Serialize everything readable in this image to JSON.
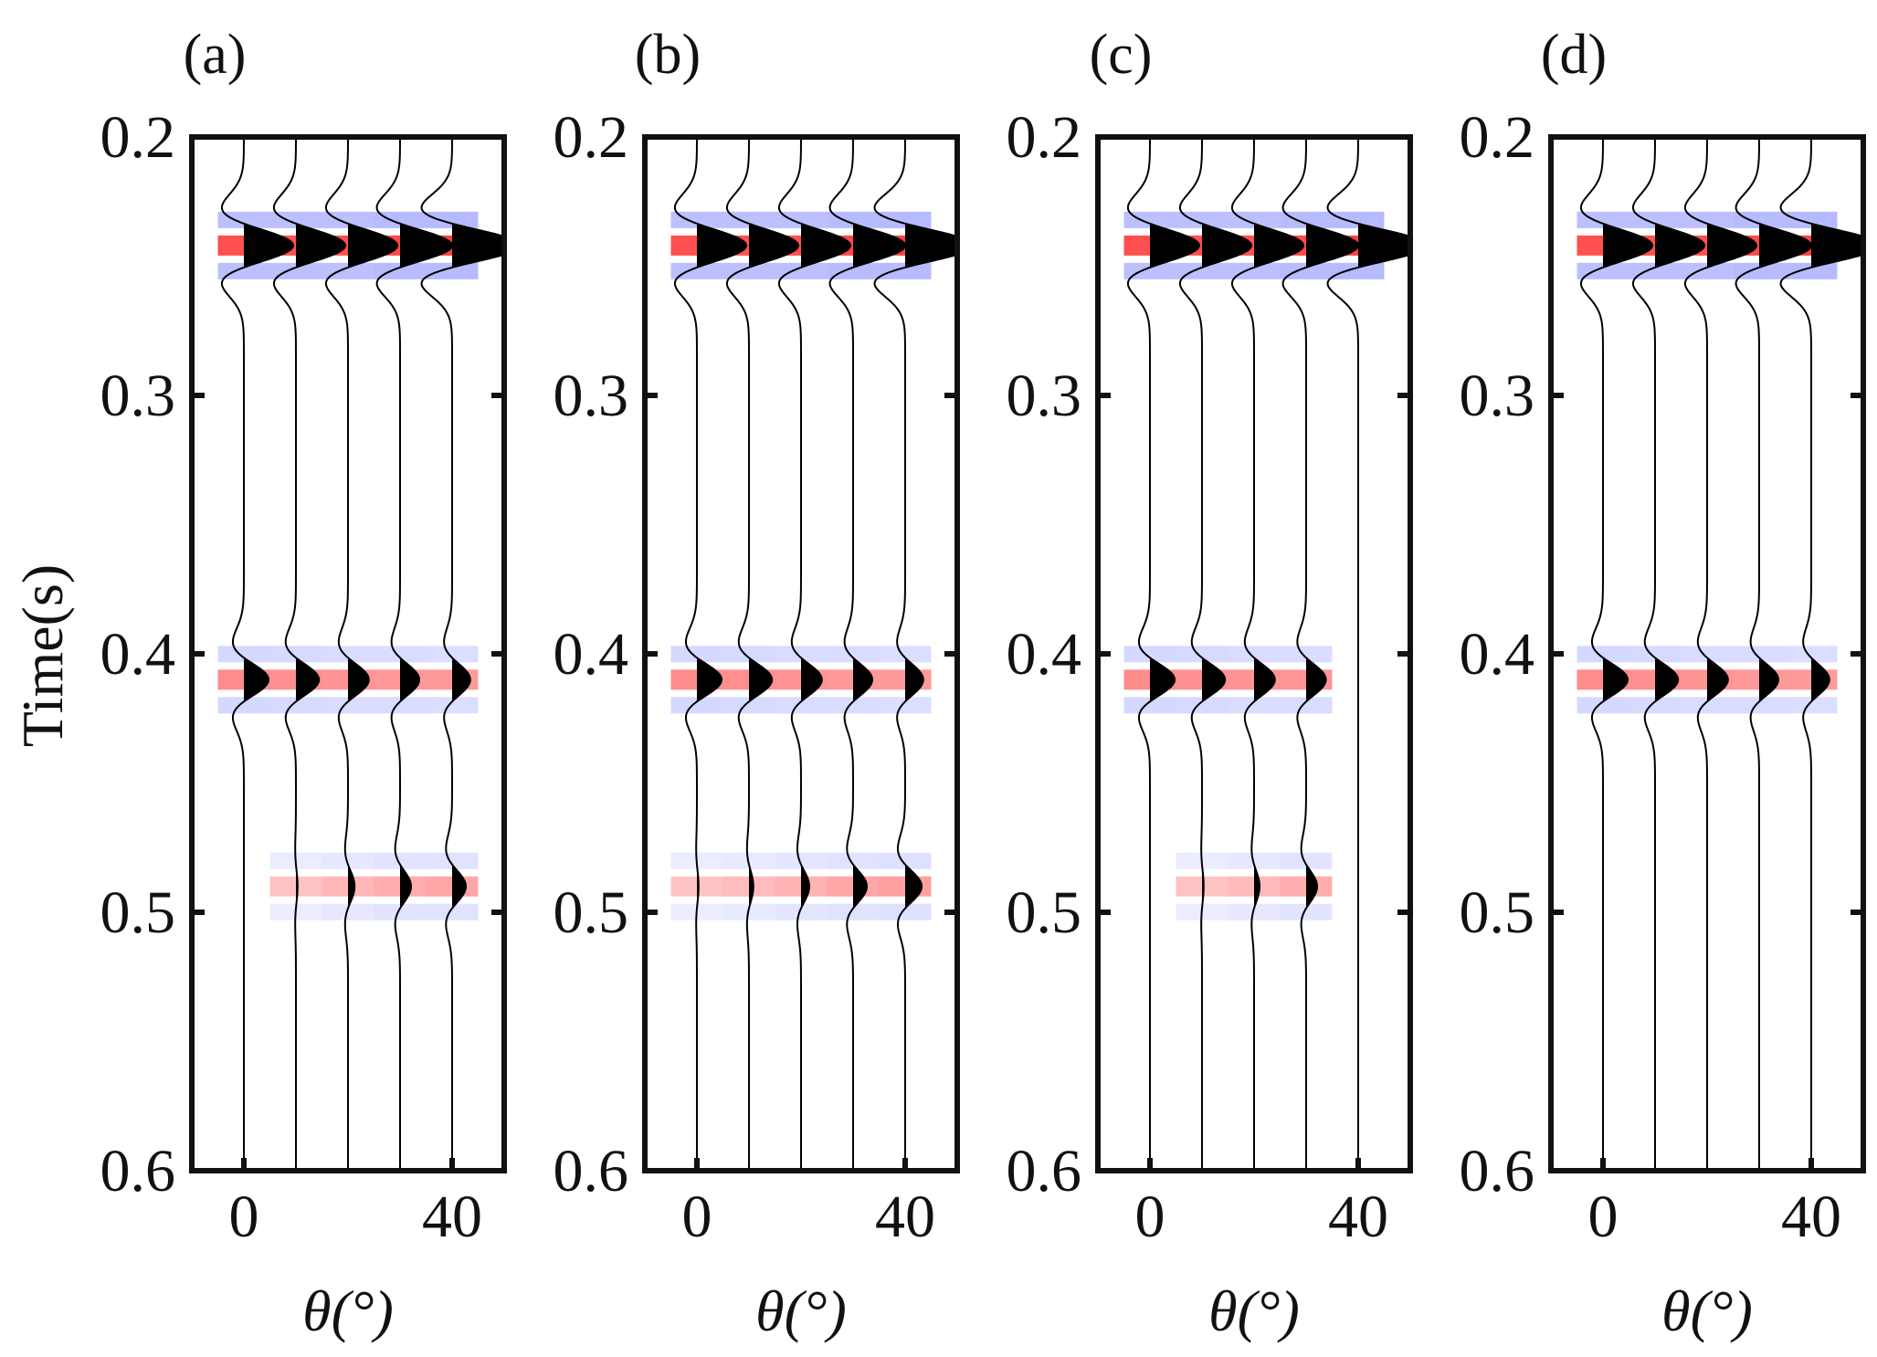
{
  "figure": {
    "ylabel": "Time(s)",
    "xlabel": "θ(°)"
  },
  "chart_data": [
    {
      "type": "heatmap",
      "title": "(a)",
      "ylabel": "Time(s)",
      "xlabel": "θ(°)",
      "yticks": [
        "0.2",
        "0.3",
        "0.4",
        "0.5",
        "0.6"
      ],
      "xticks": [
        "0",
        "40"
      ],
      "ylim": [
        0.2,
        0.6
      ],
      "xlim": [
        -10,
        50
      ],
      "trace_angles": [
        0,
        10,
        20,
        30,
        40
      ],
      "events": [
        {
          "time": 0.242,
          "amplitudes": [
            0.9,
            0.9,
            0.9,
            0.95,
            1.25
          ]
        },
        {
          "time": 0.41,
          "amplitudes": [
            0.45,
            0.42,
            0.38,
            0.35,
            0.33
          ]
        },
        {
          "time": 0.49,
          "amplitudes": [
            0,
            0.03,
            0.12,
            0.2,
            0.25
          ]
        }
      ],
      "colormap": [
        "#2030ff",
        "#ffffff",
        "#ff2020"
      ]
    },
    {
      "type": "heatmap",
      "title": "(b)",
      "ylabel": "Time(s)",
      "xlabel": "θ(°)",
      "yticks": [
        "0.2",
        "0.3",
        "0.4",
        "0.5",
        "0.6"
      ],
      "xticks": [
        "0",
        "40"
      ],
      "ylim": [
        0.2,
        0.6
      ],
      "xlim": [
        -10,
        50
      ],
      "trace_angles": [
        0,
        10,
        20,
        30,
        40
      ],
      "events": [
        {
          "time": 0.242,
          "amplitudes": [
            0.9,
            0.9,
            0.9,
            0.95,
            1.25
          ]
        },
        {
          "time": 0.41,
          "amplitudes": [
            0.45,
            0.42,
            0.38,
            0.35,
            0.33
          ]
        },
        {
          "time": 0.49,
          "amplitudes": [
            0.03,
            0.08,
            0.15,
            0.25,
            0.3
          ]
        }
      ],
      "colormap": [
        "#2030ff",
        "#ffffff",
        "#ff2020"
      ]
    },
    {
      "type": "heatmap",
      "title": "(c)",
      "ylabel": "Time(s)",
      "xlabel": "θ(°)",
      "yticks": [
        "0.2",
        "0.3",
        "0.4",
        "0.5",
        "0.6"
      ],
      "xticks": [
        "0",
        "40"
      ],
      "ylim": [
        0.2,
        0.6
      ],
      "xlim": [
        -10,
        50
      ],
      "trace_angles": [
        0,
        10,
        20,
        30,
        40
      ],
      "events": [
        {
          "time": 0.242,
          "amplitudes": [
            0.9,
            0.9,
            0.9,
            0.95,
            1.25
          ]
        },
        {
          "time": 0.41,
          "amplitudes": [
            0.45,
            0.42,
            0.38,
            0.36,
            0
          ]
        },
        {
          "time": 0.49,
          "amplitudes": [
            0,
            0.03,
            0.1,
            0.2,
            0
          ]
        }
      ],
      "colormap": [
        "#2030ff",
        "#ffffff",
        "#ff2020"
      ]
    },
    {
      "type": "heatmap",
      "title": "(d)",
      "ylabel": "Time(s)",
      "xlabel": "θ(°)",
      "yticks": [
        "0.2",
        "0.3",
        "0.4",
        "0.5",
        "0.6"
      ],
      "xticks": [
        "0",
        "40"
      ],
      "ylim": [
        0.2,
        0.6
      ],
      "xlim": [
        -10,
        50
      ],
      "trace_angles": [
        0,
        10,
        20,
        30,
        40
      ],
      "events": [
        {
          "time": 0.242,
          "amplitudes": [
            0.9,
            0.9,
            0.9,
            0.95,
            1.25
          ]
        },
        {
          "time": 0.41,
          "amplitudes": [
            0.45,
            0.42,
            0.38,
            0.35,
            0.33
          ]
        }
      ],
      "colormap": [
        "#2030ff",
        "#ffffff",
        "#ff2020"
      ]
    }
  ]
}
